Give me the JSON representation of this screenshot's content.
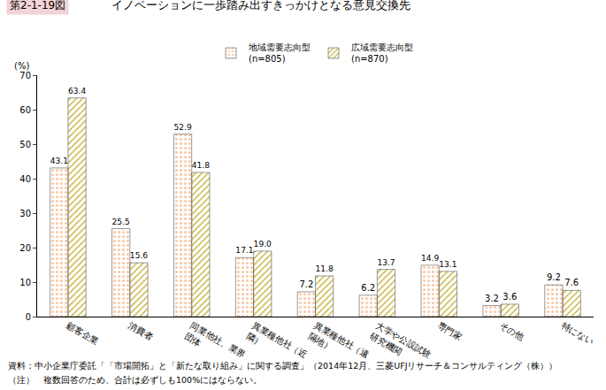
{
  "chart_data": {
    "type": "bar",
    "figure_label": "第2-1-19図",
    "title": "イノベーションに一歩踏み出すきっかけとなる意見交換先",
    "y_label": "(%)",
    "categories": [
      "顧客企業",
      "消費者",
      "同業他社、業界\n団体",
      "異業種他社（近\n隣）",
      "異業種他社（遠\n隔地）",
      "大学や公設試験\n研究機関",
      "専門家",
      "その他",
      "特にない"
    ],
    "series": [
      {
        "name": "地域需要志向型\n(n=805)",
        "color": "#f26b1d",
        "marker": "dots",
        "values": [
          43.1,
          25.5,
          52.9,
          17.1,
          7.2,
          6.2,
          14.9,
          3.2,
          9.2
        ],
        "value_labels": [
          "43.1",
          "25.5",
          "52.9",
          "17.1",
          "7.2",
          "6.2",
          "14.9",
          "3.2",
          "9.2"
        ]
      },
      {
        "name": "広域需要志向型\n(n=870)",
        "color": "#f7f1a6",
        "marker": "hatch",
        "values": [
          63.4,
          15.6,
          41.8,
          19.0,
          11.8,
          13.7,
          13.1,
          3.6,
          7.6
        ],
        "value_labels": [
          "63.4",
          "15.6",
          "41.8",
          "19.0",
          "11.8",
          "13.7",
          "13.1",
          "3.6",
          "7.6"
        ]
      }
    ],
    "ylim": [
      0,
      70
    ],
    "yticks": [
      0,
      10,
      20,
      30,
      40,
      50,
      60,
      70
    ],
    "grid": false,
    "legend": "top",
    "data_labels": true,
    "notes": [
      "資料：中小企業庁委託「「市場開拓」と「新たな取り組み」に関する調査」（2014年12月、三菱UFJリサーチ＆コンサルティング（株））",
      "（注）　複数回答のため、合計は必ずしも100%にはならない。"
    ]
  }
}
